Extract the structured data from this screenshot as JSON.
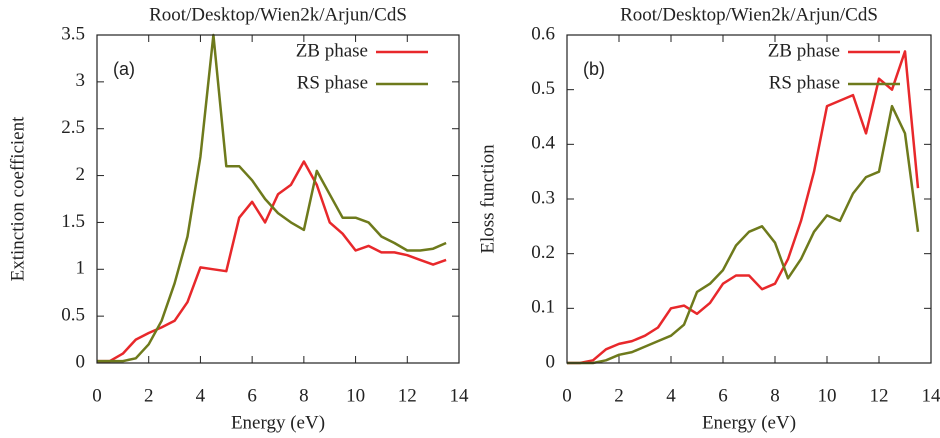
{
  "chart_data": [
    {
      "type": "line",
      "title": "Root/Desktop/Wien2k/Arjun/CdS",
      "annotation": "(a)",
      "x_label": "Energy (eV)",
      "y_label": "Extinction coefficient",
      "x": [
        0,
        0.5,
        1,
        1.5,
        2,
        2.5,
        3,
        3.5,
        4,
        4.5,
        5,
        5.5,
        6,
        6.5,
        7,
        7.5,
        8,
        8.5,
        9,
        9.5,
        10,
        10.5,
        11,
        11.5,
        12,
        12.5,
        13,
        13.5
      ],
      "series": [
        {
          "name": "ZB phase",
          "color": "#e8282b",
          "values": [
            0.02,
            0.02,
            0.1,
            0.25,
            0.32,
            0.38,
            0.45,
            0.65,
            1.02,
            1.0,
            0.98,
            1.55,
            1.72,
            1.5,
            1.8,
            1.9,
            2.15,
            1.9,
            1.5,
            1.38,
            1.2,
            1.25,
            1.18,
            1.18,
            1.15,
            1.1,
            1.05,
            1.1
          ]
        },
        {
          "name": "RS phase",
          "color": "#6e7a1c",
          "values": [
            0.02,
            0.02,
            0.02,
            0.05,
            0.2,
            0.45,
            0.85,
            1.35,
            2.2,
            3.5,
            2.1,
            2.1,
            1.95,
            1.75,
            1.6,
            1.5,
            1.42,
            2.05,
            1.8,
            1.55,
            1.55,
            1.5,
            1.35,
            1.28,
            1.2,
            1.2,
            1.22,
            1.28
          ]
        }
      ],
      "xlim": [
        0,
        14
      ],
      "xticks": [
        0,
        2,
        4,
        6,
        8,
        10,
        12,
        14
      ],
      "ylim": [
        0,
        3.5
      ],
      "yticks": [
        0,
        0.5,
        1,
        1.5,
        2,
        2.5,
        3,
        3.5
      ],
      "legend": "upper right"
    },
    {
      "type": "line",
      "title": "Root/Desktop/Wien2k/Arjun/CdS",
      "annotation": "(b)",
      "x_label": "Energy (eV)",
      "y_label": "Eloss function",
      "x": [
        0,
        0.5,
        1,
        1.5,
        2,
        2.5,
        3,
        3.5,
        4,
        4.5,
        5,
        5.5,
        6,
        6.5,
        7,
        7.5,
        8,
        8.5,
        9,
        9.5,
        10,
        10.5,
        11,
        11.5,
        12,
        12.5,
        13,
        13.5
      ],
      "series": [
        {
          "name": "ZB phase",
          "color": "#e8282b",
          "values": [
            0,
            0,
            0.005,
            0.025,
            0.035,
            0.04,
            0.05,
            0.065,
            0.1,
            0.105,
            0.09,
            0.11,
            0.145,
            0.16,
            0.16,
            0.135,
            0.145,
            0.19,
            0.26,
            0.35,
            0.47,
            0.48,
            0.49,
            0.42,
            0.52,
            0.5,
            0.57,
            0.32
          ]
        },
        {
          "name": "RS phase",
          "color": "#6e7a1c",
          "values": [
            0,
            0,
            0,
            0.005,
            0.015,
            0.02,
            0.03,
            0.04,
            0.05,
            0.07,
            0.13,
            0.145,
            0.17,
            0.215,
            0.24,
            0.25,
            0.22,
            0.155,
            0.19,
            0.24,
            0.27,
            0.26,
            0.31,
            0.34,
            0.35,
            0.47,
            0.42,
            0.24
          ]
        }
      ],
      "xlim": [
        0,
        14
      ],
      "xticks": [
        0,
        2,
        4,
        6,
        8,
        10,
        12,
        14
      ],
      "ylim": [
        0,
        0.6
      ],
      "yticks": [
        0,
        0.1,
        0.2,
        0.3,
        0.4,
        0.5,
        0.6
      ],
      "legend": "upper right"
    }
  ]
}
